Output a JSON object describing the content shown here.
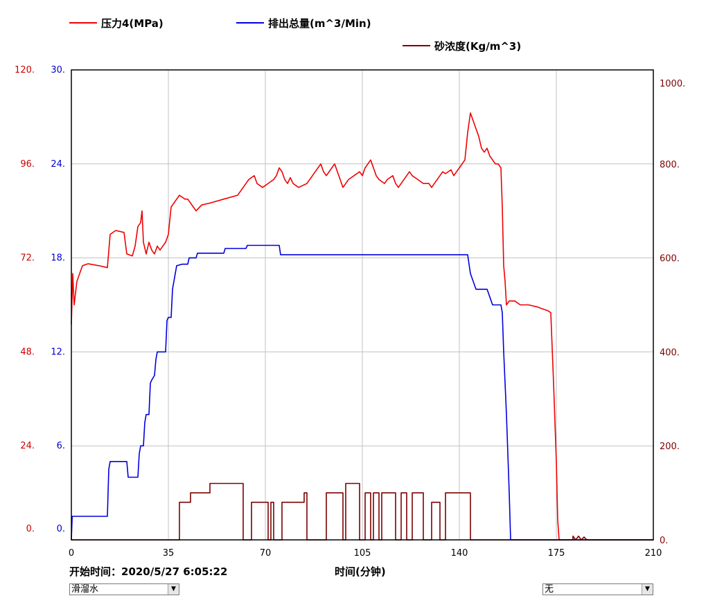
{
  "chart_data": {
    "type": "line",
    "xlabel": "时间(分钟)",
    "x_ticks": [
      "0",
      "35",
      "70",
      "105",
      "140",
      "175",
      "210"
    ],
    "xlim": [
      0,
      210
    ],
    "axes": {
      "left_outer": {
        "color": "#cc0000",
        "ylim": [
          0,
          120
        ],
        "ticks": [
          "0.",
          "24.",
          "48.",
          "72.",
          "96.",
          "120."
        ]
      },
      "left_inner": {
        "color": "#0000cc",
        "ylim": [
          0,
          30
        ],
        "ticks": [
          "0.",
          "6.",
          "12.",
          "18.",
          "24.",
          "30."
        ]
      },
      "right": {
        "color": "#7a0000",
        "ylim": [
          0,
          1000
        ],
        "ticks": [
          "0.",
          "200.",
          "400.",
          "600.",
          "800.",
          "1000."
        ]
      }
    },
    "grid": true,
    "legend_placement": "top",
    "series": [
      {
        "name": "压力4(MPa)",
        "color": "#ee0000",
        "axis": "left_outer",
        "points": [
          [
            0,
            55
          ],
          [
            0.5,
            68
          ],
          [
            1,
            60
          ],
          [
            2,
            66
          ],
          [
            4,
            70
          ],
          [
            6,
            70.5
          ],
          [
            10,
            70
          ],
          [
            13,
            69.5
          ],
          [
            14,
            78
          ],
          [
            16,
            79
          ],
          [
            19,
            78.5
          ],
          [
            20,
            73
          ],
          [
            22,
            72.5
          ],
          [
            23,
            75
          ],
          [
            24,
            80
          ],
          [
            25,
            81
          ],
          [
            25.5,
            84
          ],
          [
            26,
            76
          ],
          [
            27,
            73
          ],
          [
            28,
            76
          ],
          [
            29,
            74
          ],
          [
            30,
            73
          ],
          [
            31,
            75
          ],
          [
            32,
            74
          ],
          [
            33,
            75
          ],
          [
            34,
            76
          ],
          [
            35,
            78
          ],
          [
            36,
            85
          ],
          [
            38,
            87
          ],
          [
            39,
            88
          ],
          [
            41,
            87
          ],
          [
            42,
            87
          ],
          [
            44,
            85
          ],
          [
            45,
            84
          ],
          [
            47,
            85.5
          ],
          [
            50,
            86
          ],
          [
            55,
            87
          ],
          [
            60,
            88
          ],
          [
            62,
            90
          ],
          [
            64,
            92
          ],
          [
            66,
            93
          ],
          [
            67,
            91
          ],
          [
            69,
            90
          ],
          [
            71,
            91
          ],
          [
            73,
            92
          ],
          [
            74,
            93
          ],
          [
            75,
            95
          ],
          [
            76,
            94
          ],
          [
            77,
            92
          ],
          [
            78,
            91
          ],
          [
            79,
            92.5
          ],
          [
            80,
            91
          ],
          [
            82,
            90
          ],
          [
            85,
            91
          ],
          [
            86,
            92
          ],
          [
            87,
            93
          ],
          [
            88,
            94
          ],
          [
            89,
            95
          ],
          [
            90,
            96
          ],
          [
            91,
            94
          ],
          [
            92,
            93
          ],
          [
            94,
            95
          ],
          [
            95,
            96
          ],
          [
            96,
            94
          ],
          [
            97,
            92
          ],
          [
            98,
            90
          ],
          [
            100,
            92
          ],
          [
            102,
            93
          ],
          [
            104,
            94
          ],
          [
            105,
            93
          ],
          [
            106,
            95
          ],
          [
            107,
            96
          ],
          [
            108,
            97
          ],
          [
            109,
            95
          ],
          [
            110,
            93
          ],
          [
            111,
            92
          ],
          [
            113,
            91
          ],
          [
            114,
            92
          ],
          [
            116,
            93
          ],
          [
            117,
            91
          ],
          [
            118,
            90
          ],
          [
            119,
            91
          ],
          [
            120,
            92
          ],
          [
            121,
            93
          ],
          [
            122,
            94
          ],
          [
            123,
            93
          ],
          [
            125,
            92
          ],
          [
            127,
            91
          ],
          [
            129,
            91
          ],
          [
            130,
            90
          ],
          [
            131,
            91
          ],
          [
            132,
            92
          ],
          [
            133,
            93
          ],
          [
            134,
            94
          ],
          [
            135,
            93.5
          ],
          [
            136,
            94
          ],
          [
            137,
            94.5
          ],
          [
            138,
            93
          ],
          [
            139,
            94
          ],
          [
            140,
            95
          ],
          [
            141,
            96
          ],
          [
            142,
            97
          ],
          [
            143,
            104
          ],
          [
            144,
            109
          ],
          [
            145,
            107
          ],
          [
            146,
            105
          ],
          [
            147,
            103
          ],
          [
            148,
            100
          ],
          [
            149,
            99
          ],
          [
            150,
            100
          ],
          [
            151,
            98
          ],
          [
            152,
            97
          ],
          [
            153,
            96
          ],
          [
            154,
            96
          ],
          [
            155,
            95
          ],
          [
            155.5,
            85
          ],
          [
            156,
            70
          ],
          [
            156.5,
            66
          ],
          [
            157,
            60
          ],
          [
            158,
            61
          ],
          [
            160,
            61
          ],
          [
            162,
            60
          ],
          [
            165,
            60
          ],
          [
            168,
            59.5
          ],
          [
            170,
            59
          ],
          [
            172,
            58.5
          ],
          [
            173,
            58
          ],
          [
            174,
            40
          ],
          [
            175,
            20
          ],
          [
            175.5,
            5
          ],
          [
            176,
            0
          ],
          [
            210,
            0
          ]
        ]
      },
      {
        "name": "排出总量(m^3/Min)",
        "color": "#0000dd",
        "axis": "left_inner",
        "points": [
          [
            0,
            0
          ],
          [
            0.3,
            1.5
          ],
          [
            1,
            1.5
          ],
          [
            13,
            1.5
          ],
          [
            13.5,
            4.5
          ],
          [
            14,
            5
          ],
          [
            20,
            5
          ],
          [
            20.5,
            4
          ],
          [
            24,
            4
          ],
          [
            24.5,
            5.5
          ],
          [
            25,
            6
          ],
          [
            26,
            6
          ],
          [
            26.5,
            7.5
          ],
          [
            27,
            8
          ],
          [
            28,
            8
          ],
          [
            28.5,
            10
          ],
          [
            29,
            10.2
          ],
          [
            30,
            10.5
          ],
          [
            30.5,
            11.5
          ],
          [
            31,
            12
          ],
          [
            34,
            12
          ],
          [
            34.5,
            14
          ],
          [
            35,
            14.2
          ],
          [
            36,
            14.2
          ],
          [
            36.5,
            16
          ],
          [
            37,
            16.5
          ],
          [
            37.5,
            17
          ],
          [
            38,
            17.5
          ],
          [
            40,
            17.6
          ],
          [
            42,
            17.6
          ],
          [
            42.5,
            18
          ],
          [
            45,
            18
          ],
          [
            45.5,
            18.3
          ],
          [
            55,
            18.3
          ],
          [
            55.5,
            18.6
          ],
          [
            63,
            18.6
          ],
          [
            63.5,
            18.8
          ],
          [
            75,
            18.8
          ],
          [
            75.5,
            18.2
          ],
          [
            80,
            18.2
          ],
          [
            143,
            18.2
          ],
          [
            144,
            17
          ],
          [
            145,
            16.5
          ],
          [
            146,
            16
          ],
          [
            150,
            16
          ],
          [
            151,
            15.5
          ],
          [
            152,
            15
          ],
          [
            155,
            15
          ],
          [
            155.5,
            14.5
          ],
          [
            156,
            12
          ],
          [
            157,
            8
          ],
          [
            158,
            3
          ],
          [
            158.5,
            0
          ],
          [
            210,
            0
          ]
        ]
      },
      {
        "name": "砂浓度(Kg/m^3)",
        "color": "#7a0000",
        "axis": "right",
        "points": [
          [
            0,
            0
          ],
          [
            39,
            0
          ],
          [
            39,
            80
          ],
          [
            43,
            80
          ],
          [
            43,
            100
          ],
          [
            50,
            100
          ],
          [
            50,
            120
          ],
          [
            62,
            120
          ],
          [
            62,
            0
          ],
          [
            65,
            0
          ],
          [
            65,
            80
          ],
          [
            71,
            80
          ],
          [
            71,
            0
          ],
          [
            72,
            0
          ],
          [
            72,
            80
          ],
          [
            73,
            80
          ],
          [
            73,
            0
          ],
          [
            76,
            0
          ],
          [
            76,
            80
          ],
          [
            84,
            80
          ],
          [
            84,
            100
          ],
          [
            85,
            100
          ],
          [
            85,
            0
          ],
          [
            92,
            0
          ],
          [
            92,
            100
          ],
          [
            98,
            100
          ],
          [
            98,
            0
          ],
          [
            99,
            0
          ],
          [
            99,
            120
          ],
          [
            104,
            120
          ],
          [
            104,
            0
          ],
          [
            106,
            0
          ],
          [
            106,
            100
          ],
          [
            108,
            100
          ],
          [
            108,
            0
          ],
          [
            109,
            0
          ],
          [
            109,
            100
          ],
          [
            111,
            100
          ],
          [
            111,
            0
          ],
          [
            112,
            0
          ],
          [
            112,
            100
          ],
          [
            117,
            100
          ],
          [
            117,
            0
          ],
          [
            119,
            0
          ],
          [
            119,
            100
          ],
          [
            121,
            100
          ],
          [
            121,
            0
          ],
          [
            123,
            0
          ],
          [
            123,
            100
          ],
          [
            127,
            100
          ],
          [
            127,
            0
          ],
          [
            130,
            0
          ],
          [
            130,
            80
          ],
          [
            133,
            80
          ],
          [
            133,
            0
          ],
          [
            135,
            0
          ],
          [
            135,
            100
          ],
          [
            144,
            100
          ],
          [
            144,
            0
          ],
          [
            181,
            0
          ],
          [
            181,
            8
          ],
          [
            182,
            0
          ],
          [
            183,
            8
          ],
          [
            184,
            0
          ],
          [
            185,
            6
          ],
          [
            186,
            0
          ],
          [
            210,
            0
          ]
        ]
      }
    ]
  },
  "footer": {
    "start_time_label": "开始时间：2020/5/27 6:05:22",
    "x_axis_title": "时间(分钟)",
    "left_select_value": "滑溜水",
    "right_select_value": "无"
  },
  "icons": {
    "dropdown": "chevron-down-icon"
  }
}
